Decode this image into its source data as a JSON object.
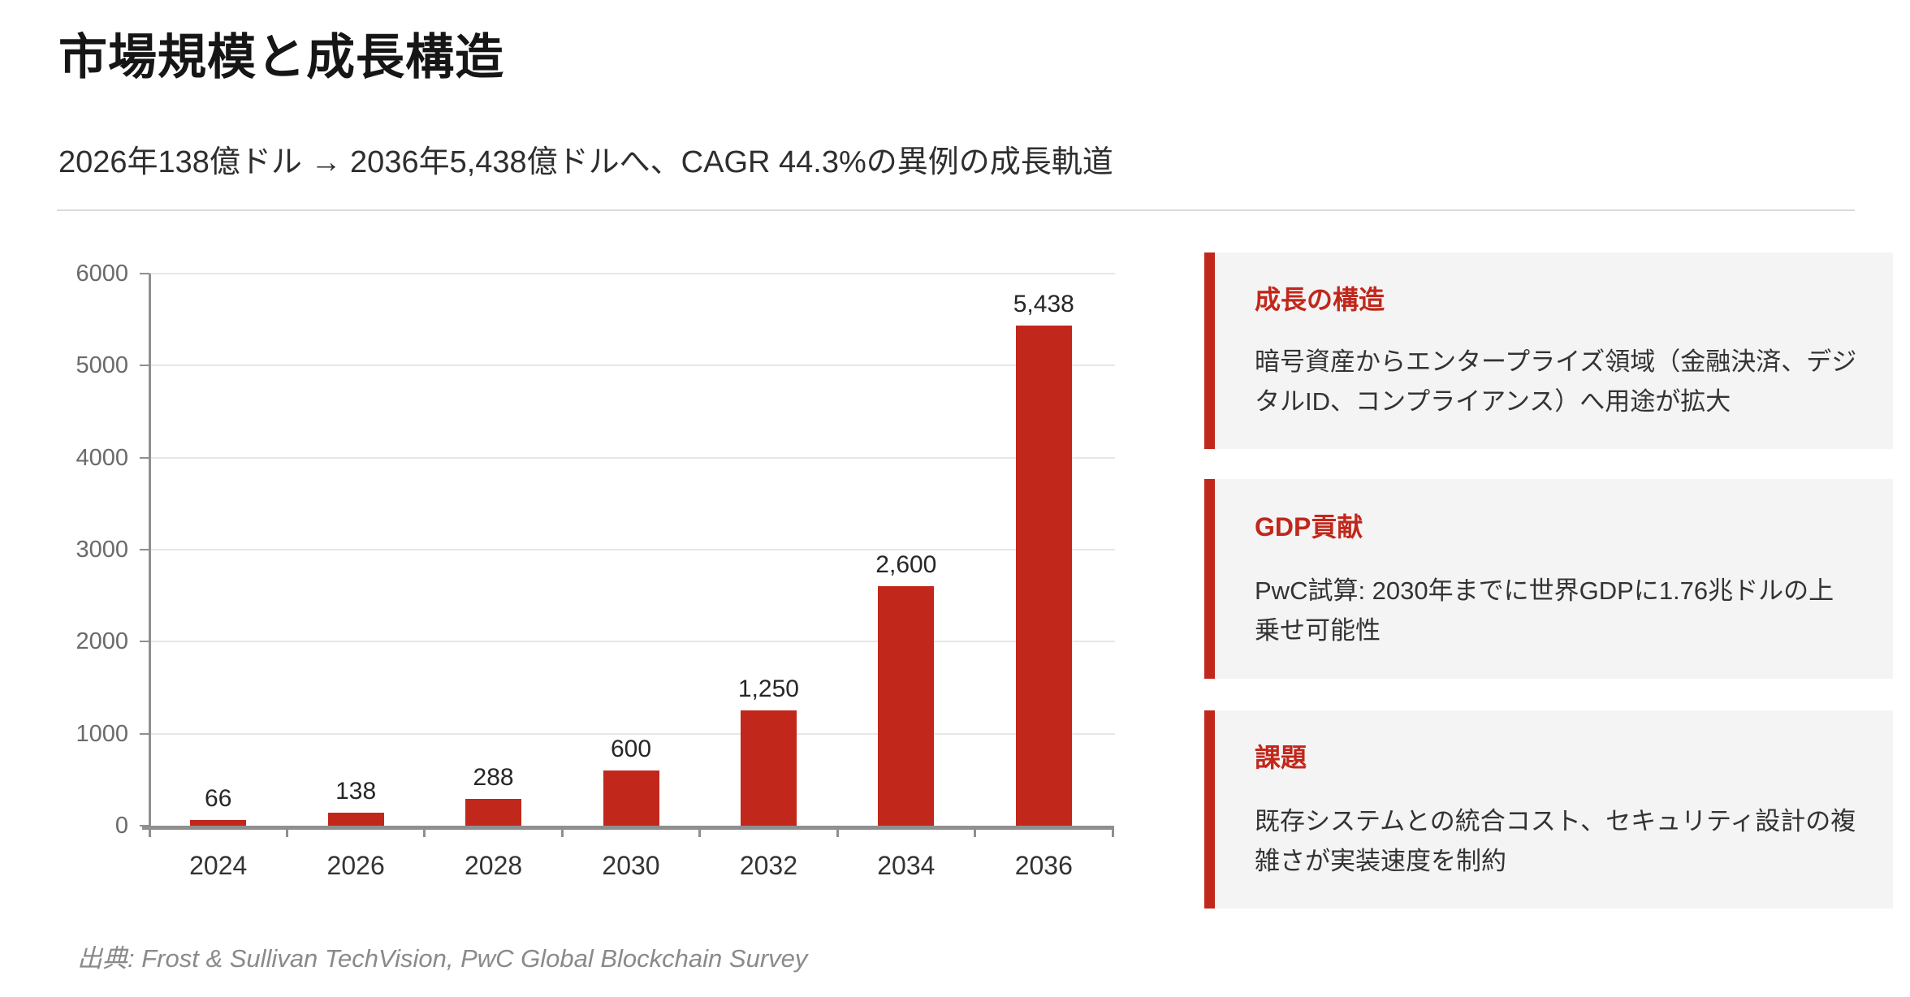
{
  "header": {
    "title": "市場規模と成長構造",
    "subtitle": "2026年138億ドル → 2036年5,438億ドルへ、CAGR 44.3%の異例の成長軌道"
  },
  "chart_data": {
    "type": "bar",
    "categories": [
      "2024",
      "2026",
      "2028",
      "2030",
      "2032",
      "2034",
      "2036"
    ],
    "values": [
      66,
      138,
      288,
      600,
      1250,
      2600,
      5438
    ],
    "value_labels": [
      "66",
      "138",
      "288",
      "600",
      "1,250",
      "2,600",
      "5,438"
    ],
    "title": "",
    "xlabel": "",
    "ylabel": "",
    "ylim": [
      0,
      6000
    ],
    "yticks": [
      0,
      1000,
      2000,
      3000,
      4000,
      5000,
      6000
    ],
    "grid": true,
    "legend": "none",
    "bar_color": "#c1271b"
  },
  "info_boxes": [
    {
      "title": "成長の構造",
      "body": "暗号資産からエンタープライズ領域（金融決済、デジタルID、コンプライアンス）へ用途が拡大"
    },
    {
      "title": "GDP貢献",
      "body": "PwC試算: 2030年までに世界GDPに1.76兆ドルの上乗せ可能性"
    },
    {
      "title": "課題",
      "body": "既存システムとの統合コスト、セキュリティ設計の複雑さが実装速度を制約"
    }
  ],
  "footer": {
    "source": "出典: Frost & Sullivan TechVision, PwC Global Blockchain Survey"
  },
  "colors": {
    "accent_red": "#c1271b",
    "box_background": "#f4f4f4",
    "gridline": "#e7e7e7",
    "axis": "#8f8f8f",
    "y_label": "#6a6a6a",
    "text_dark": "#333333"
  }
}
